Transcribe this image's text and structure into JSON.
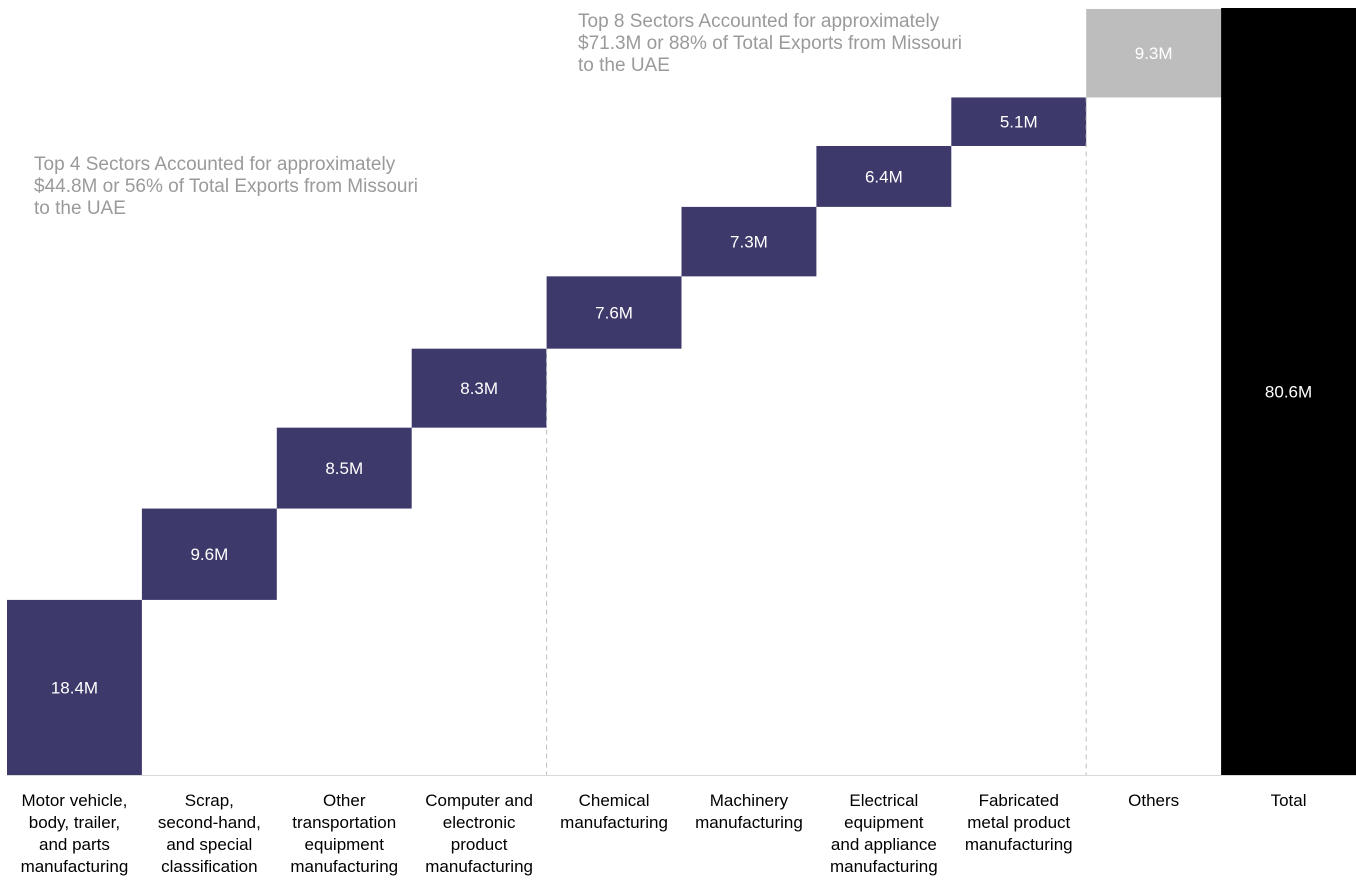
{
  "chart_data": {
    "type": "bar",
    "subtype": "waterfall",
    "categories": [
      [
        "Motor vehicle,",
        "body, trailer,",
        "and parts",
        "manufacturing"
      ],
      [
        "Scrap,",
        "second-hand,",
        "and special",
        "classification"
      ],
      [
        "Other",
        "transportation",
        "equipment",
        "manufacturing"
      ],
      [
        "Computer and",
        "electronic",
        "product",
        "manufacturing"
      ],
      [
        "Chemical",
        "manufacturing"
      ],
      [
        "Machinery",
        "manufacturing"
      ],
      [
        "Electrical",
        "equipment",
        "and appliance",
        "manufacturing"
      ],
      [
        "Fabricated",
        "metal product",
        "manufacturing"
      ],
      [
        "Others"
      ],
      [
        "Total"
      ]
    ],
    "values": [
      18.4,
      9.6,
      8.5,
      8.3,
      7.6,
      7.3,
      6.4,
      5.1,
      9.3,
      80.6
    ],
    "value_labels": [
      "18.4M",
      "9.6M",
      "8.5M",
      "8.3M",
      "7.6M",
      "7.3M",
      "6.4M",
      "5.1M",
      "9.3M",
      "80.6M"
    ],
    "total_index": 9,
    "ylim": [
      0,
      80.6
    ],
    "grid": false,
    "legend": "none",
    "colors": {
      "sector": "#3d3a6b",
      "others": "#bdbdbd",
      "total": "#000000",
      "label_text": "#ffffff",
      "annotation_text": "#9a9a9a",
      "divider": "#bfbfbf",
      "axis": "#d9d9d9"
    },
    "bar_colors": [
      "sector",
      "sector",
      "sector",
      "sector",
      "sector",
      "sector",
      "sector",
      "sector",
      "others",
      "total"
    ],
    "group_dividers_after": [
      3,
      7
    ],
    "annotations": [
      {
        "lines": [
          "Top 4 Sectors Accounted for approximately",
          "$44.8M or 56% of Total Exports from Missouri",
          "to the UAE"
        ]
      },
      {
        "lines": [
          "Top 8 Sectors Accounted for approximately",
          "$71.3M or 88% of Total Exports from Missouri",
          "to the UAE"
        ]
      }
    ]
  }
}
